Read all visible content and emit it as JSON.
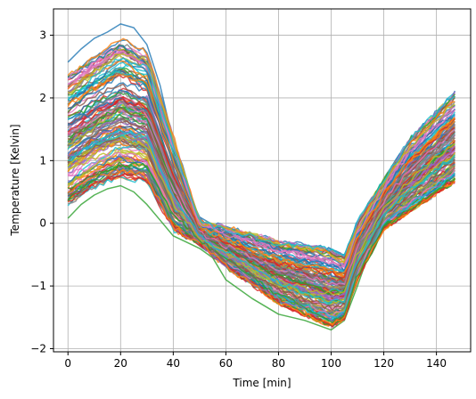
{
  "chart_data": {
    "type": "line",
    "title": "",
    "xlabel": "Time [min]",
    "ylabel": "Temperature [Kelvin]",
    "xlim": [
      -5.5,
      153
    ],
    "ylim": [
      -2.05,
      3.42
    ],
    "xticks": [
      0,
      20,
      40,
      60,
      80,
      100,
      120,
      140
    ],
    "yticks": [
      -2,
      -1,
      0,
      1,
      2,
      3
    ],
    "grid": true,
    "legend": "none",
    "n_series": 150,
    "x_range": [
      0,
      147
    ],
    "colors": [
      "#1f77b4",
      "#ff7f0e",
      "#2ca02c",
      "#d62728",
      "#9467bd",
      "#8c564b",
      "#e377c2",
      "#7f7f7f",
      "#bcbd22",
      "#17becf"
    ],
    "envelope": {
      "x": [
        0,
        10,
        20,
        30,
        40,
        50,
        60,
        80,
        100,
        105,
        110,
        120,
        130,
        147
      ],
      "min": [
        0.1,
        0.35,
        0.5,
        0.45,
        -0.25,
        -0.35,
        -0.75,
        -1.35,
        -1.75,
        -1.6,
        -0.95,
        -0.15,
        0.1,
        0.55
      ],
      "max": [
        2.6,
        2.9,
        3.2,
        2.95,
        1.55,
        0.05,
        0.0,
        -0.2,
        -0.3,
        -0.45,
        0.1,
        0.75,
        1.45,
        2.2
      ]
    },
    "representative_series": [
      {
        "x": [
          0,
          5,
          10,
          15,
          20,
          25,
          30,
          35,
          40,
          45,
          50,
          55,
          60,
          70,
          80,
          90,
          100,
          105,
          110,
          115,
          120,
          130,
          140,
          147
        ],
        "y": [
          2.57,
          2.78,
          2.95,
          3.05,
          3.18,
          3.12,
          2.85,
          2.2,
          1.3,
          0.55,
          0.1,
          -0.02,
          -0.05,
          -0.2,
          -0.3,
          -0.38,
          -0.48,
          -0.5,
          -0.05,
          0.35,
          0.6,
          0.95,
          1.25,
          1.55
        ]
      },
      {
        "x": [
          0,
          5,
          10,
          15,
          20,
          25,
          30,
          35,
          40,
          45,
          50,
          55,
          60,
          70,
          80,
          90,
          100,
          105,
          110,
          115,
          120,
          130,
          140,
          147
        ],
        "y": [
          1.2,
          1.3,
          1.4,
          1.5,
          1.55,
          1.45,
          1.2,
          0.6,
          0.05,
          -0.15,
          -0.25,
          -0.35,
          -0.55,
          -0.7,
          -0.85,
          -0.95,
          -1.05,
          -1.0,
          -0.6,
          0.0,
          0.35,
          0.6,
          0.9,
          1.1
        ]
      },
      {
        "x": [
          0,
          5,
          10,
          15,
          20,
          25,
          30,
          35,
          40,
          45,
          50,
          55,
          60,
          70,
          80,
          90,
          100,
          105,
          110,
          115,
          120,
          130,
          140,
          147
        ],
        "y": [
          0.08,
          0.3,
          0.45,
          0.55,
          0.6,
          0.5,
          0.3,
          0.05,
          -0.2,
          -0.3,
          -0.4,
          -0.55,
          -0.9,
          -1.2,
          -1.45,
          -1.55,
          -1.7,
          -1.55,
          -1.0,
          -0.4,
          0.0,
          0.3,
          0.55,
          0.75
        ]
      }
    ]
  }
}
